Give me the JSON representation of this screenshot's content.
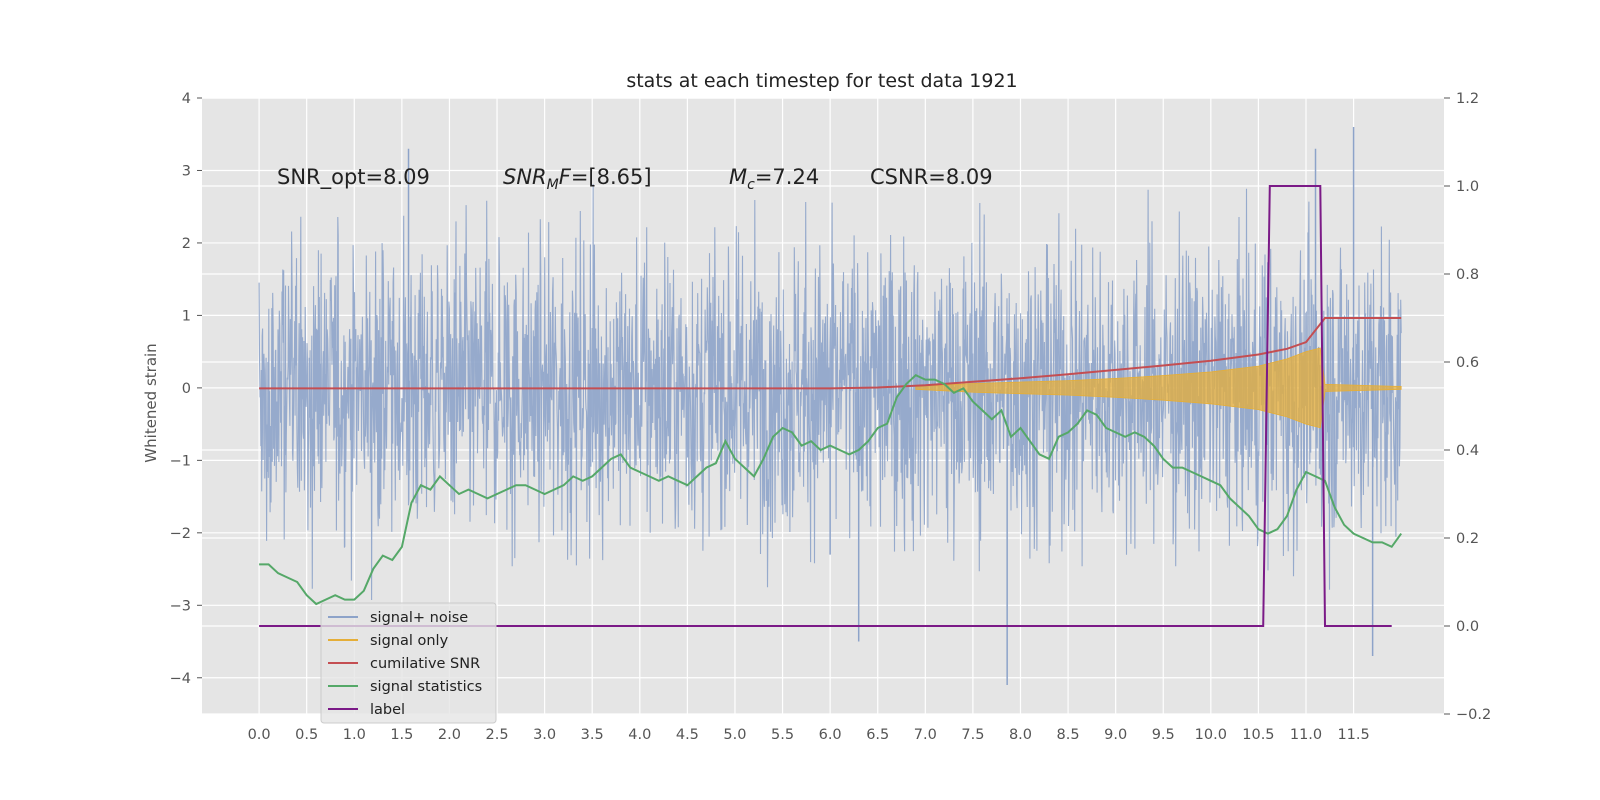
{
  "chart_data": {
    "type": "line",
    "title": "stats at each timestep for test data 1921",
    "xlabel": "",
    "ylabel": "Whitened strain",
    "y2label": "",
    "xlim": [
      -0.6,
      12.45
    ],
    "ylim": [
      -4.5,
      4
    ],
    "y2lim": [
      -0.2,
      1.2
    ],
    "x_ticks": [
      "0.0",
      "0.5",
      "1.0",
      "1.5",
      "2.0",
      "2.5",
      "3.0",
      "3.5",
      "4.0",
      "4.5",
      "5.0",
      "5.5",
      "6.0",
      "6.5",
      "7.0",
      "7.5",
      "8.0",
      "8.5",
      "9.0",
      "9.5",
      "10.0",
      "10.5",
      "11.0",
      "11.5"
    ],
    "y_ticks": [
      "−4",
      "−3",
      "−2",
      "−1",
      "0",
      "1",
      "2",
      "3",
      "4"
    ],
    "y2_ticks": [
      "−0.2",
      "0.0",
      "0.2",
      "0.4",
      "0.6",
      "0.8",
      "1.0",
      "1.2"
    ],
    "grid": true,
    "annotations": {
      "snr_opt": "SNR_opt=8.09",
      "snr_mf": "=[8.65]",
      "mc": "=7.24",
      "csnr": "CSNR=8.09"
    },
    "legend_position": "lower-left",
    "legend": [
      "signal+ noise",
      "signal only",
      "cumilative SNR",
      "signal statistics",
      "label"
    ],
    "colors": {
      "noise": "#8da3c9",
      "signal": "#e5ae38",
      "cumulative": "#c44e52",
      "statistics": "#55a868",
      "label": "#7b1a87",
      "background": "#e5e5e5",
      "grid": "#ffffff"
    },
    "series": [
      {
        "name": "signal+ noise",
        "axis": "left",
        "description_range": [
          -2.0,
          2.0
        ],
        "peaks": [
          [
            1.57,
            3.3
          ],
          [
            6.0,
            -2.3
          ],
          [
            7.86,
            -4.1
          ],
          [
            11.1,
            3.3
          ],
          [
            6.3,
            -3.5
          ],
          [
            11.7,
            -3.7
          ],
          [
            11.5,
            3.6
          ]
        ]
      },
      {
        "name": "signal only",
        "axis": "left",
        "x": [
          6.9,
          7.5,
          8.0,
          8.5,
          9.0,
          9.5,
          10.0,
          10.5,
          10.8,
          11.0,
          11.15,
          11.2,
          12.0
        ],
        "amplitude": [
          0.02,
          0.06,
          0.08,
          0.1,
          0.13,
          0.17,
          0.22,
          0.3,
          0.4,
          0.5,
          0.55,
          0.05,
          0.02
        ]
      },
      {
        "name": "cumilative SNR",
        "axis": "right",
        "x": [
          0.0,
          6.0,
          6.5,
          7.0,
          7.5,
          8.0,
          8.5,
          9.0,
          9.5,
          10.0,
          10.5,
          10.8,
          11.0,
          11.2,
          12.0
        ],
        "y": [
          0.54,
          0.54,
          0.542,
          0.547,
          0.555,
          0.563,
          0.572,
          0.582,
          0.592,
          0.603,
          0.617,
          0.63,
          0.645,
          0.7,
          0.7
        ]
      },
      {
        "name": "signal statistics",
        "axis": "right",
        "x": [
          0.0,
          0.1,
          0.2,
          0.3,
          0.4,
          0.5,
          0.6,
          0.7,
          0.8,
          0.9,
          1.0,
          1.1,
          1.2,
          1.3,
          1.4,
          1.5,
          1.6,
          1.7,
          1.8,
          1.9,
          2.0,
          2.1,
          2.2,
          2.3,
          2.4,
          2.5,
          2.6,
          2.7,
          2.8,
          2.9,
          3.0,
          3.1,
          3.2,
          3.3,
          3.4,
          3.5,
          3.6,
          3.7,
          3.8,
          3.9,
          4.0,
          4.1,
          4.2,
          4.3,
          4.4,
          4.5,
          4.6,
          4.7,
          4.8,
          4.9,
          5.0,
          5.1,
          5.2,
          5.3,
          5.4,
          5.5,
          5.6,
          5.7,
          5.8,
          5.9,
          6.0,
          6.1,
          6.2,
          6.3,
          6.4,
          6.5,
          6.6,
          6.7,
          6.8,
          6.9,
          7.0,
          7.1,
          7.2,
          7.3,
          7.4,
          7.5,
          7.6,
          7.7,
          7.8,
          7.9,
          8.0,
          8.1,
          8.2,
          8.3,
          8.4,
          8.5,
          8.6,
          8.7,
          8.8,
          8.9,
          9.0,
          9.1,
          9.2,
          9.3,
          9.4,
          9.5,
          9.6,
          9.7,
          9.8,
          9.9,
          10.0,
          10.1,
          10.2,
          10.3,
          10.4,
          10.5,
          10.6,
          10.7,
          10.8,
          10.9,
          11.0,
          11.1,
          11.2,
          11.3,
          11.4,
          11.5,
          11.6,
          11.7,
          11.8,
          11.9,
          12.0
        ],
        "y": [
          0.14,
          0.14,
          0.12,
          0.11,
          0.1,
          0.07,
          0.05,
          0.06,
          0.07,
          0.06,
          0.06,
          0.08,
          0.13,
          0.16,
          0.15,
          0.18,
          0.28,
          0.32,
          0.31,
          0.34,
          0.32,
          0.3,
          0.31,
          0.3,
          0.29,
          0.3,
          0.31,
          0.32,
          0.32,
          0.31,
          0.3,
          0.31,
          0.32,
          0.34,
          0.33,
          0.34,
          0.36,
          0.38,
          0.39,
          0.36,
          0.35,
          0.34,
          0.33,
          0.34,
          0.33,
          0.32,
          0.34,
          0.36,
          0.37,
          0.42,
          0.38,
          0.36,
          0.34,
          0.38,
          0.43,
          0.45,
          0.44,
          0.41,
          0.42,
          0.4,
          0.41,
          0.4,
          0.39,
          0.4,
          0.42,
          0.45,
          0.46,
          0.52,
          0.55,
          0.57,
          0.56,
          0.56,
          0.55,
          0.53,
          0.54,
          0.51,
          0.49,
          0.47,
          0.49,
          0.43,
          0.45,
          0.42,
          0.39,
          0.38,
          0.43,
          0.44,
          0.46,
          0.49,
          0.48,
          0.45,
          0.44,
          0.43,
          0.44,
          0.43,
          0.41,
          0.38,
          0.36,
          0.36,
          0.35,
          0.34,
          0.33,
          0.32,
          0.29,
          0.27,
          0.25,
          0.22,
          0.21,
          0.22,
          0.25,
          0.31,
          0.35,
          0.34,
          0.33,
          0.27,
          0.23,
          0.21,
          0.2,
          0.19,
          0.19,
          0.18,
          0.21
        ]
      },
      {
        "name": "label",
        "axis": "right",
        "x": [
          0.0,
          10.55,
          10.62,
          11.15,
          11.2,
          11.9
        ],
        "y": [
          0.0,
          0.0,
          1.0,
          1.0,
          0.0,
          0.0
        ]
      }
    ]
  }
}
